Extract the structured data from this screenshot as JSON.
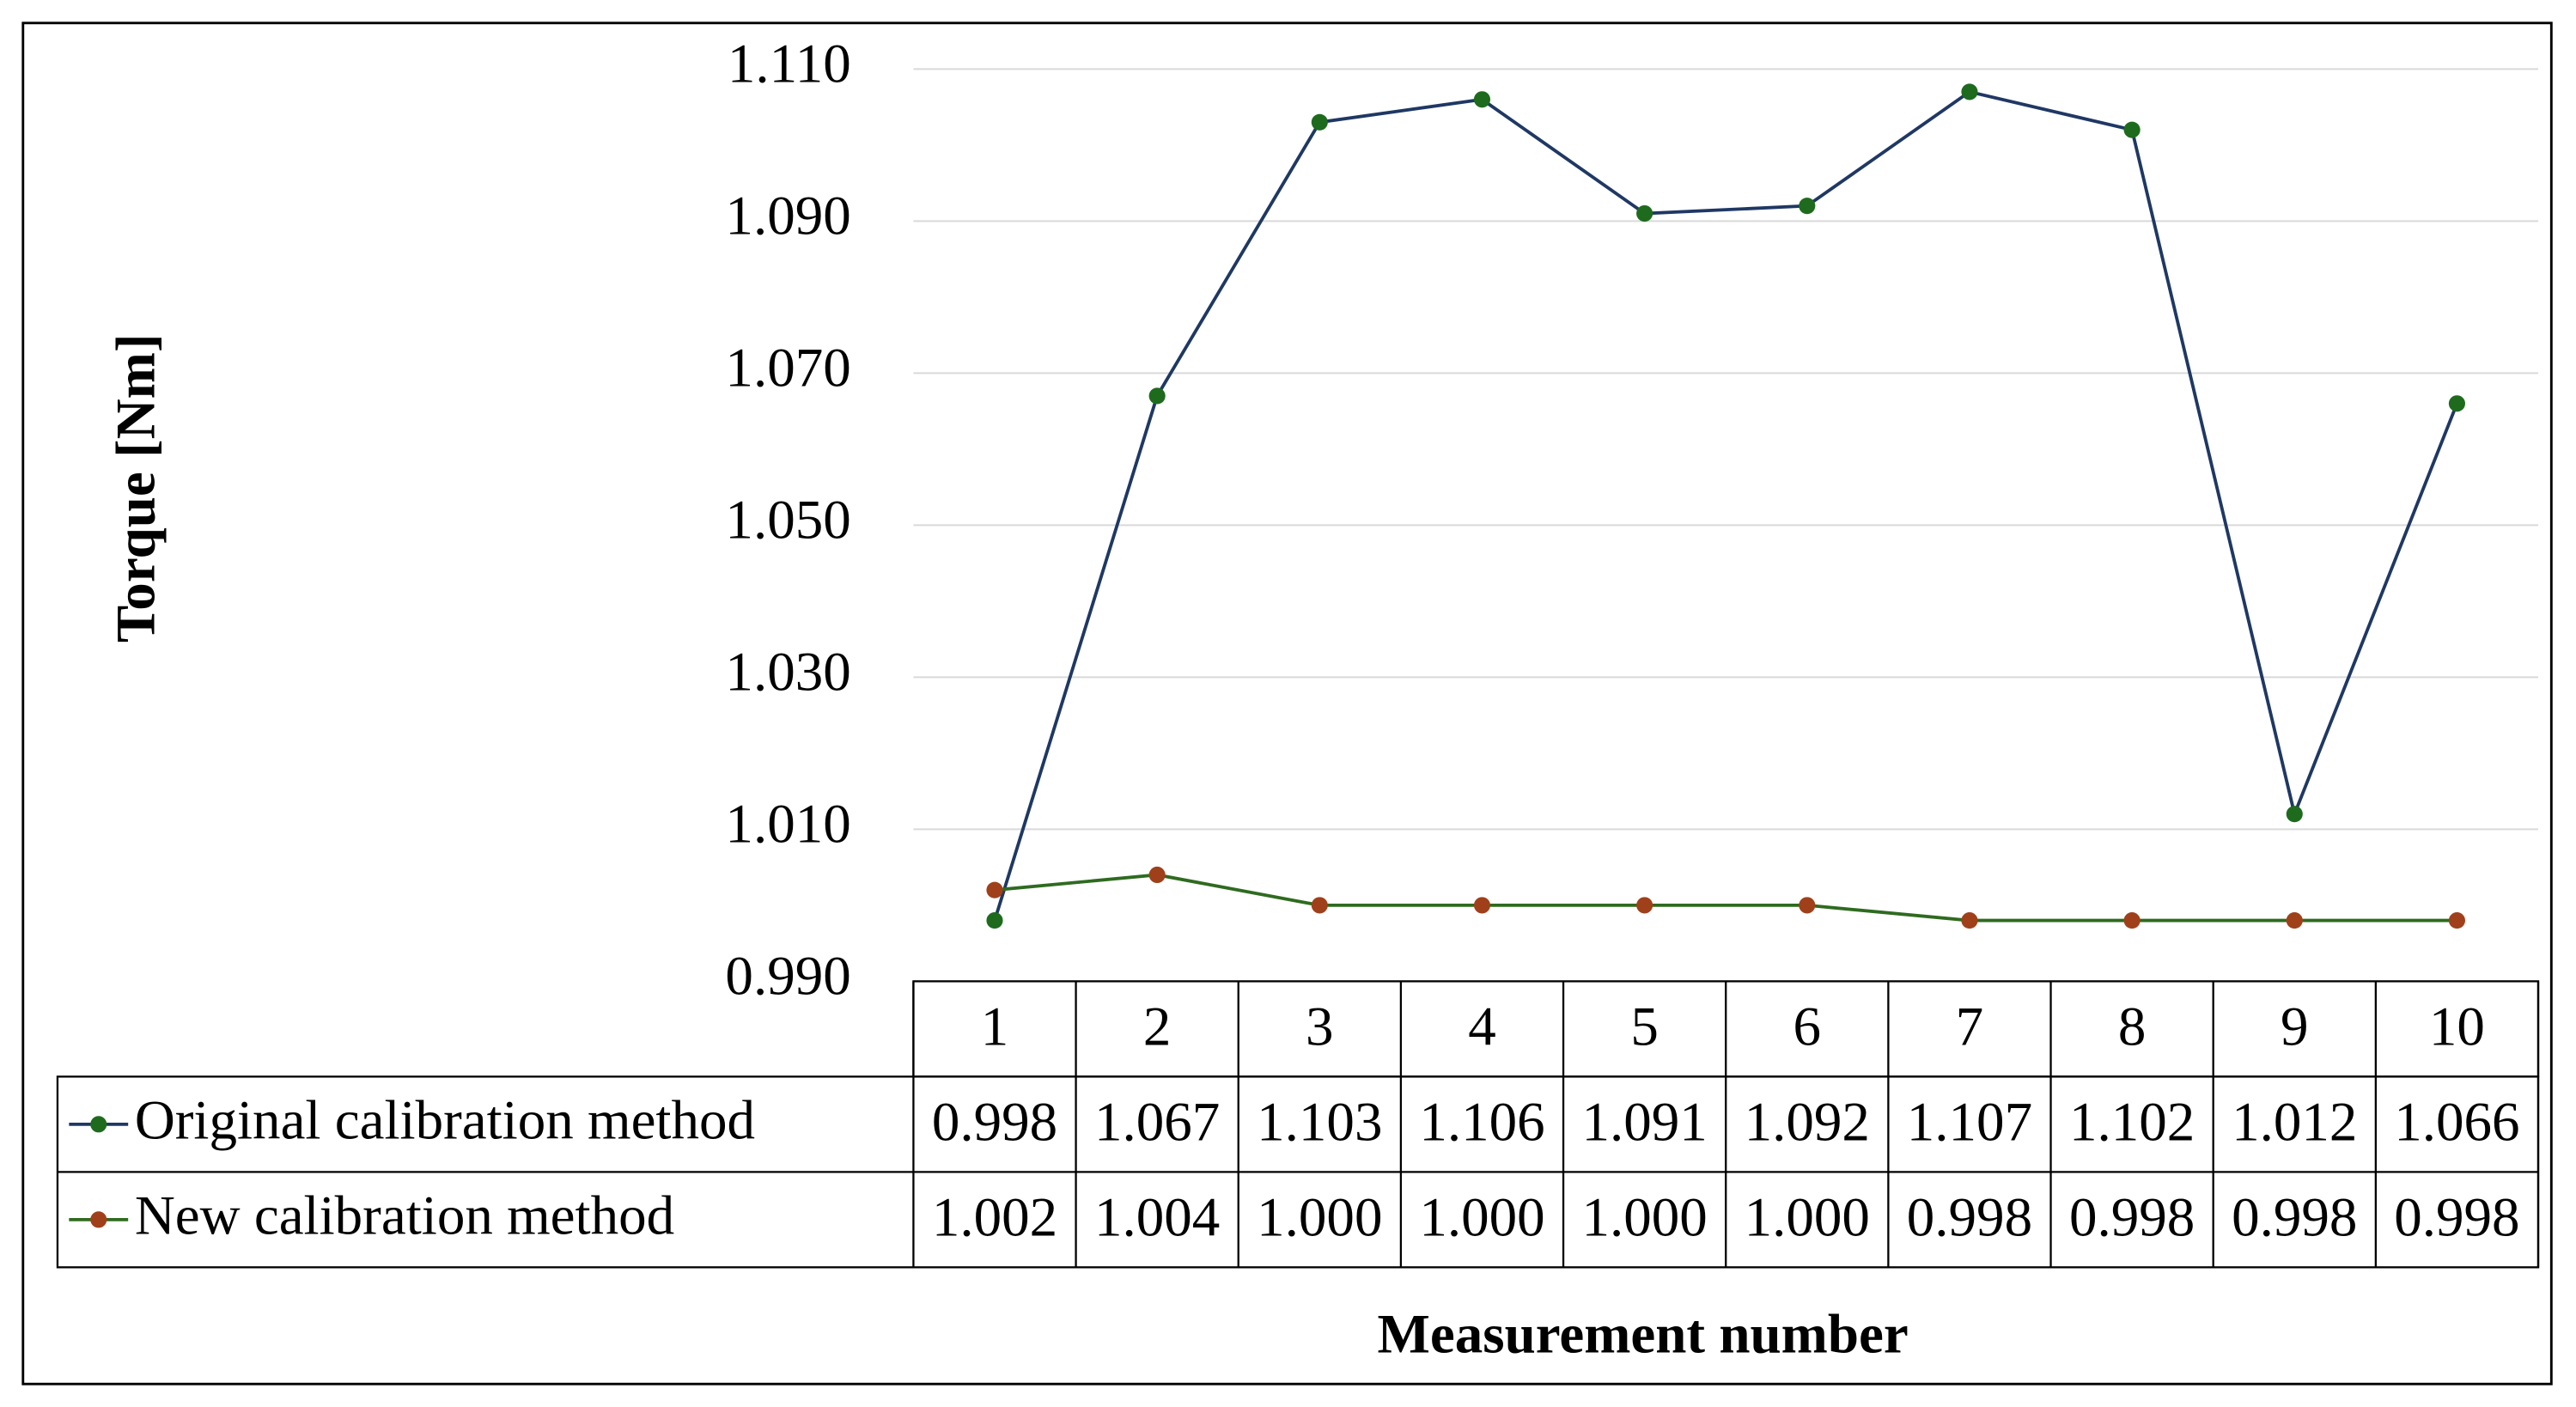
{
  "chart_data": {
    "type": "line",
    "y_label": "Torque [Nm]",
    "x_label": "Measurement number",
    "categories": [
      "1",
      "2",
      "3",
      "4",
      "5",
      "6",
      "7",
      "8",
      "9",
      "10"
    ],
    "series": [
      {
        "name": "Original calibration method",
        "color": "#1f3864",
        "marker_color": "#1e6b1e",
        "values": [
          0.998,
          1.067,
          1.103,
          1.106,
          1.091,
          1.092,
          1.107,
          1.102,
          1.012,
          1.066
        ],
        "value_labels": [
          "0.998",
          "1.067",
          "1.103",
          "1.106",
          "1.091",
          "1.092",
          "1.107",
          "1.102",
          "1.012",
          "1.066"
        ]
      },
      {
        "name": "New calibration method",
        "color": "#2e6b1f",
        "marker_color": "#a0401a",
        "values": [
          1.002,
          1.004,
          1.0,
          1.0,
          1.0,
          1.0,
          0.998,
          0.998,
          0.998,
          0.998
        ],
        "value_labels": [
          "1.002",
          "1.004",
          "1.000",
          "1.000",
          "1.000",
          "1.000",
          "0.998",
          "0.998",
          "0.998",
          "0.998"
        ]
      }
    ],
    "ylim": [
      0.99,
      1.11
    ],
    "yticks": [
      {
        "value": 0.99,
        "label": "0.990"
      },
      {
        "value": 1.01,
        "label": "1.010"
      },
      {
        "value": 1.03,
        "label": "1.030"
      },
      {
        "value": 1.05,
        "label": "1.050"
      },
      {
        "value": 1.07,
        "label": "1.070"
      },
      {
        "value": 1.09,
        "label": "1.090"
      },
      {
        "value": 1.11,
        "label": "1.110"
      }
    ],
    "grid": true
  }
}
